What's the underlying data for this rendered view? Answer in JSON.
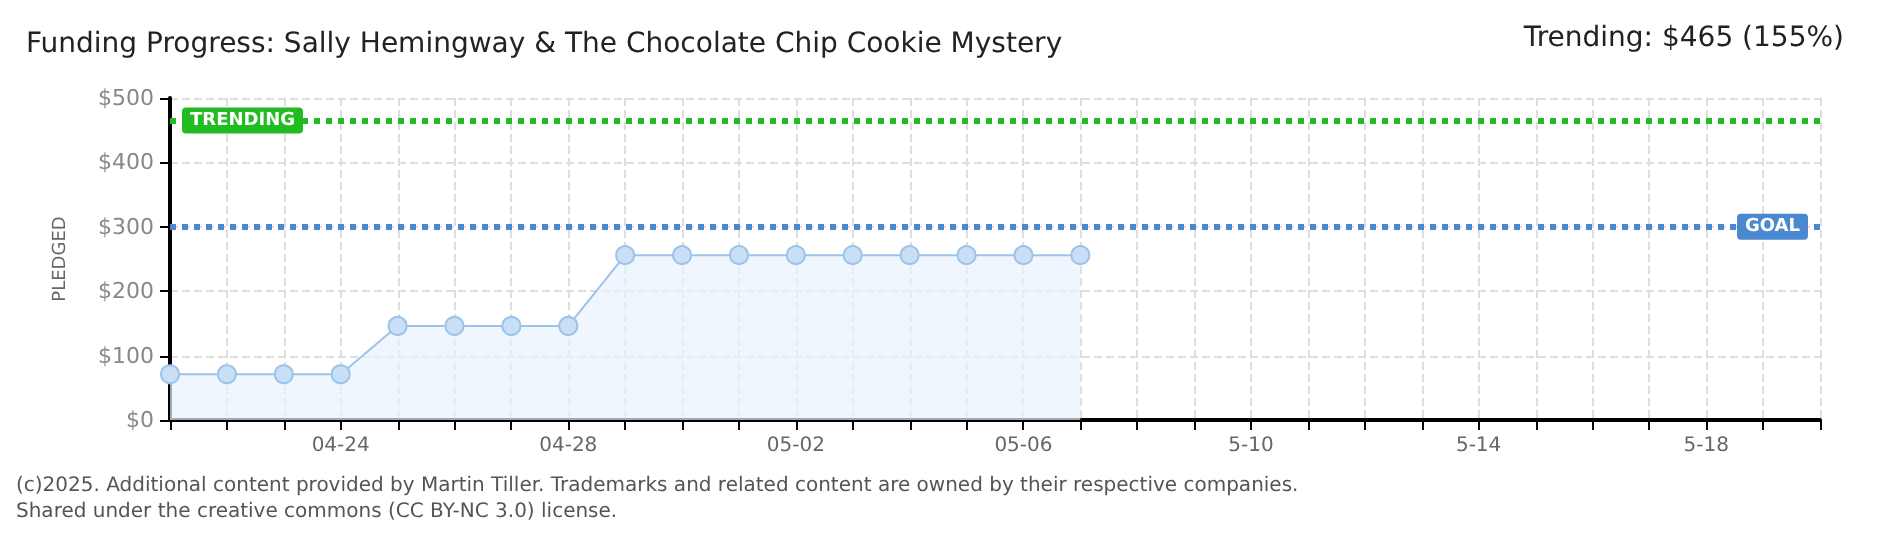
{
  "chart_data": {
    "type": "area",
    "title": "Funding Progress: Sally Hemingway & The Chocolate Chip Cookie Mystery",
    "ylabel": "PLEDGED",
    "annotations": [
      "Trending: $465 (155%)",
      "(c)2025. Additional content provided by Martin Tiller. Trademarks and related content are owned by their respective companies.",
      "Shared under the creative commons (CC BY-NC 3.0) license."
    ],
    "categories": [
      null,
      null,
      null,
      "04-24",
      null,
      null,
      null,
      "04-28",
      null,
      null,
      null,
      "05-02",
      null,
      null,
      null,
      "05-06",
      null,
      null,
      null,
      "5-10",
      null,
      null,
      null,
      "5-14",
      null,
      null,
      null,
      "5-18",
      null,
      null
    ],
    "series": [
      {
        "color": "#9cc4ea",
        "values": [
          71,
          71,
          71,
          71,
          146,
          146,
          146,
          146,
          256,
          256,
          256,
          256,
          256,
          256,
          256,
          256,
          256,
          null,
          null,
          null,
          null,
          null,
          null,
          null,
          null,
          null,
          null,
          null,
          null,
          null
        ]
      }
    ],
    "ylim": [
      0,
      500
    ],
    "yticks": [
      {
        "value": 0,
        "label": "$0"
      },
      {
        "value": 100,
        "label": "$100"
      },
      {
        "value": 200,
        "label": "$200"
      },
      {
        "value": 300,
        "label": "$300"
      },
      {
        "value": 400,
        "label": "$400"
      },
      {
        "value": 500,
        "label": "$500"
      }
    ],
    "ref_lines": [
      {
        "axis": "y",
        "value": 465,
        "label": "TRENDING",
        "color": "#22bb22",
        "line_style": "dotted"
      },
      {
        "axis": "y",
        "value": 300,
        "label": "GOAL",
        "color": "#4a88d0",
        "line_style": "dotted"
      }
    ],
    "grid": true,
    "marker": "circle",
    "line_style": "solid"
  }
}
